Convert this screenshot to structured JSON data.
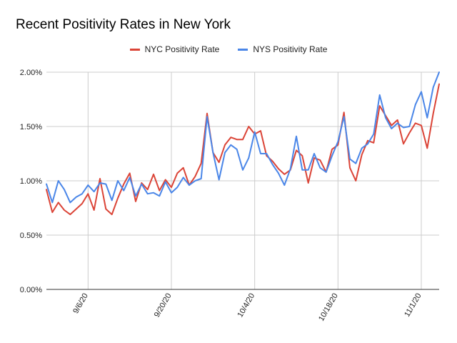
{
  "chart_data": {
    "type": "line",
    "title": "Recent Positivity Rates in New York",
    "xlabel": "",
    "ylabel": "",
    "x_start": "8/30/20",
    "x_ticks": [
      "9/6/20",
      "9/20/20",
      "10/4/20",
      "10/18/20",
      "11/1/20"
    ],
    "ylim": [
      0,
      2.0
    ],
    "y_ticks": [
      "0.00%",
      "0.50%",
      "1.00%",
      "1.50%",
      "2.00%"
    ],
    "y_tick_values": [
      0,
      0.5,
      1.0,
      1.5,
      2.0
    ],
    "grid": "horizontal and vertical",
    "legend_position": "top",
    "series": [
      {
        "name": "NYC Positivity Rate",
        "color": "#db4437",
        "values": [
          0.92,
          0.71,
          0.8,
          0.73,
          0.69,
          0.74,
          0.79,
          0.88,
          0.73,
          1.02,
          0.74,
          0.69,
          0.84,
          0.97,
          1.07,
          0.81,
          0.98,
          0.92,
          1.06,
          0.91,
          1.01,
          0.94,
          1.07,
          1.12,
          0.96,
          1.04,
          1.16,
          1.62,
          1.26,
          1.17,
          1.33,
          1.4,
          1.38,
          1.38,
          1.5,
          1.43,
          1.46,
          1.23,
          1.18,
          1.11,
          1.06,
          1.1,
          1.28,
          1.23,
          0.98,
          1.21,
          1.19,
          1.08,
          1.29,
          1.33,
          1.63,
          1.12,
          1.0,
          1.24,
          1.37,
          1.35,
          1.69,
          1.6,
          1.51,
          1.56,
          1.34,
          1.44,
          1.53,
          1.51,
          1.3,
          1.62,
          1.89
        ]
      },
      {
        "name": "NYS Positivity Rate",
        "color": "#4a86e8",
        "values": [
          0.97,
          0.8,
          1.0,
          0.92,
          0.8,
          0.85,
          0.88,
          0.96,
          0.9,
          0.98,
          0.97,
          0.82,
          1.0,
          0.91,
          1.03,
          0.86,
          0.97,
          0.88,
          0.89,
          0.86,
          0.99,
          0.89,
          0.94,
          1.03,
          0.96,
          1.0,
          1.02,
          1.59,
          1.26,
          1.01,
          1.26,
          1.33,
          1.29,
          1.1,
          1.21,
          1.45,
          1.25,
          1.25,
          1.15,
          1.07,
          0.96,
          1.11,
          1.41,
          1.1,
          1.1,
          1.25,
          1.12,
          1.08,
          1.23,
          1.36,
          1.59,
          1.2,
          1.16,
          1.3,
          1.34,
          1.43,
          1.79,
          1.58,
          1.48,
          1.53,
          1.49,
          1.5,
          1.7,
          1.82,
          1.58,
          1.86,
          2.0
        ]
      }
    ]
  }
}
